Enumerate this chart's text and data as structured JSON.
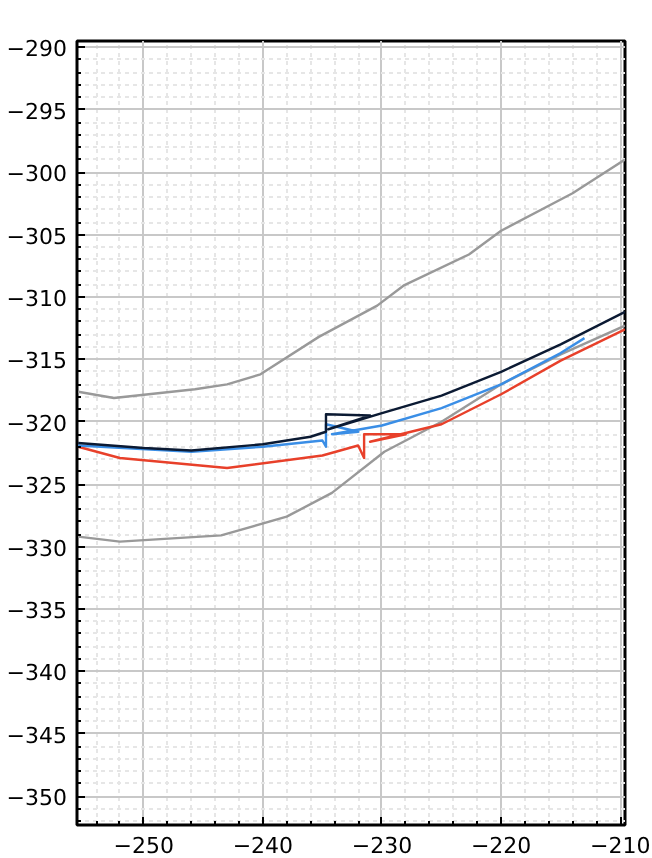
{
  "chart_data": {
    "type": "line",
    "xlim": [
      -255.6,
      -209.6
    ],
    "ylim": [
      -352.3,
      -289.5
    ],
    "xticks": [
      -250,
      -240,
      -230,
      -220,
      -210
    ],
    "yticks": [
      -350,
      -345,
      -340,
      -335,
      -330,
      -325,
      -320,
      -315,
      -310,
      -305,
      -300,
      -295,
      -290
    ],
    "grid": true,
    "marker": "none",
    "line_style": "solid",
    "series": [
      {
        "color": "#999999",
        "x": [
          -255.5,
          -252.5,
          -245.7,
          -243,
          -240.2,
          -235.3,
          -230.4,
          -228.2,
          -222.7,
          -220,
          -214,
          -209.6
        ],
        "values": [
          -317.6,
          -318.1,
          -317.4,
          -317.0,
          -316.2,
          -313.2,
          -310.7,
          -309.1,
          -306.6,
          -304.7,
          -301.7,
          -299.0
        ]
      },
      {
        "color": "#999999",
        "x": [
          -255.5,
          -252,
          -243.5,
          -238,
          -234.2,
          -229.8,
          -225,
          -220,
          -215,
          -209.6
        ],
        "values": [
          -329.2,
          -329.6,
          -329.1,
          -327.6,
          -325.7,
          -322.4,
          -320.0,
          -317.0,
          -314.6,
          -312.3
        ]
      },
      {
        "color": "#e8402a",
        "x": [
          -255.5,
          -252,
          -243,
          -235,
          -232,
          -231.5,
          -231.5,
          -228,
          -231,
          -225,
          -220,
          -215,
          -209.6
        ],
        "values": [
          -322.0,
          -322.9,
          -323.7,
          -322.7,
          -321.9,
          -322.9,
          -321.0,
          -321.0,
          -321.6,
          -320.2,
          -317.8,
          -315.1,
          -312.6
        ]
      },
      {
        "color": "#3a8ee6",
        "x": [
          -255.5,
          -246,
          -240,
          -235,
          -234.7,
          -234.7,
          -232.0,
          -234.2,
          -230,
          -225,
          -220,
          -215,
          -213
        ],
        "values": [
          -321.9,
          -322.4,
          -322.0,
          -321.5,
          -322.0,
          -320.2,
          -320.8,
          -321.0,
          -320.3,
          -318.9,
          -317.0,
          -314.5,
          -313.3
        ]
      },
      {
        "color": "#0b1a33",
        "x": [
          -255.5,
          -250,
          -246,
          -240,
          -236,
          -234.7,
          -234.7,
          -231.0,
          -234.5,
          -230,
          -225,
          -220,
          -215,
          -209.6
        ],
        "values": [
          -321.7,
          -322.1,
          -322.3,
          -321.8,
          -321.2,
          -320.8,
          -319.4,
          -319.5,
          -320.6,
          -319.3,
          -317.9,
          -316.0,
          -313.8,
          -311.2
        ]
      }
    ]
  }
}
